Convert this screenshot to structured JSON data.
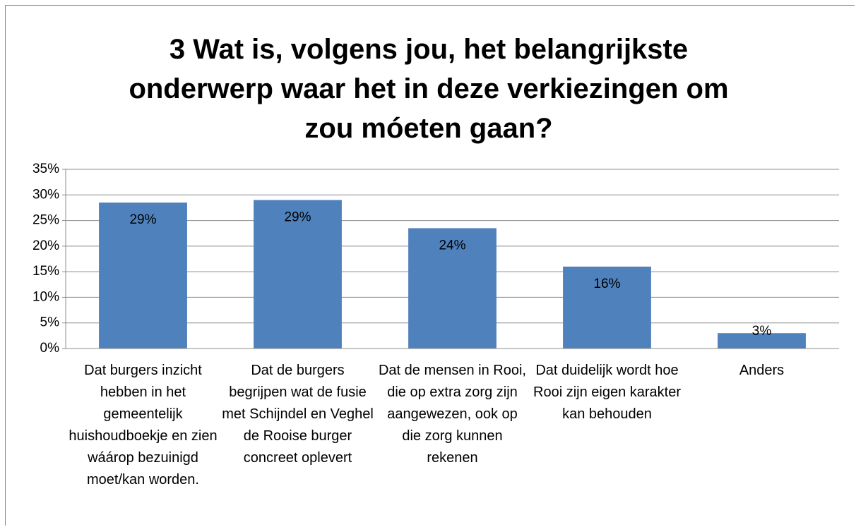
{
  "chart_data": {
    "type": "bar",
    "title": "3 Wat is, volgens jou, het belangrijkste onderwerp waar het in deze verkiezingen om zou móeten gaan?",
    "categories": [
      "Dat burgers inzicht hebben in het gemeentelijk huishoudboekje en zien wáárop bezuinigd moet/kan worden.",
      "Dat de burgers begrijpen wat de fusie met Schijndel en Veghel de Rooise burger concreet oplevert",
      "Dat de mensen in Rooi,  die op extra zorg zijn aangewezen, ook op die zorg kunnen rekenen",
      "Dat duidelijk wordt hoe Rooi zijn eigen karakter kan behouden",
      "Anders"
    ],
    "values": [
      28.5,
      29,
      23.5,
      16,
      3
    ],
    "value_labels": [
      "29%",
      "29%",
      "24%",
      "16%",
      "3%"
    ],
    "color": "#4f81bd",
    "ylim": [
      0,
      35
    ],
    "yticks": [
      {
        "value": 0,
        "label": "0%"
      },
      {
        "value": 5,
        "label": "5%"
      },
      {
        "value": 10,
        "label": "10%"
      },
      {
        "value": 15,
        "label": "15%"
      },
      {
        "value": 20,
        "label": "20%"
      },
      {
        "value": 25,
        "label": "25%"
      },
      {
        "value": 30,
        "label": "30%"
      },
      {
        "value": 35,
        "label": "35%"
      }
    ],
    "grid": true
  }
}
